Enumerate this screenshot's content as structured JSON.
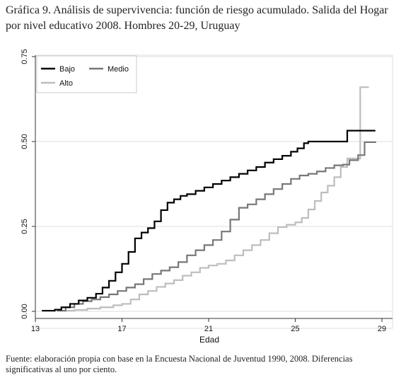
{
  "caption": "Gráfica 9. Análisis de supervivencia: función de riesgo acumulado. Salida del Hogar por nivel educativo 2008. Hombres 20-29, Uruguay",
  "source": "Fuente: elaboración propia con base en la Encuesta Nacional de Juventud 1990, 2008. Diferencias significativas al uno por ciento.",
  "chart_data": {
    "type": "line",
    "step": true,
    "xlabel": "Edad",
    "ylabel": "",
    "xlim": [
      13,
      29
    ],
    "ylim": [
      0,
      0.75
    ],
    "xticks": [
      13,
      17,
      21,
      25,
      29
    ],
    "yticks": [
      0.0,
      0.25,
      0.5,
      0.75
    ],
    "ytick_labels": [
      "0.00",
      "0.25",
      "0.50",
      "0.75"
    ],
    "grid": true,
    "legend_position": "top-left",
    "series": [
      {
        "name": "Bajo",
        "color": "#000000",
        "points": [
          [
            13.3,
            0.002
          ],
          [
            13.5,
            0.002
          ],
          [
            13.9,
            0.005
          ],
          [
            14.2,
            0.012
          ],
          [
            14.6,
            0.022
          ],
          [
            15.0,
            0.032
          ],
          [
            15.4,
            0.04
          ],
          [
            15.8,
            0.052
          ],
          [
            16.1,
            0.07
          ],
          [
            16.4,
            0.09
          ],
          [
            16.7,
            0.115
          ],
          [
            17.0,
            0.14
          ],
          [
            17.3,
            0.175
          ],
          [
            17.6,
            0.215
          ],
          [
            17.9,
            0.232
          ],
          [
            18.2,
            0.245
          ],
          [
            18.5,
            0.265
          ],
          [
            18.8,
            0.298
          ],
          [
            19.1,
            0.32
          ],
          [
            19.4,
            0.33
          ],
          [
            19.7,
            0.34
          ],
          [
            20.0,
            0.345
          ],
          [
            20.4,
            0.355
          ],
          [
            20.8,
            0.365
          ],
          [
            21.2,
            0.375
          ],
          [
            21.6,
            0.385
          ],
          [
            22.0,
            0.395
          ],
          [
            22.4,
            0.405
          ],
          [
            22.8,
            0.415
          ],
          [
            23.2,
            0.425
          ],
          [
            23.6,
            0.438
          ],
          [
            24.0,
            0.448
          ],
          [
            24.4,
            0.458
          ],
          [
            24.8,
            0.47
          ],
          [
            25.1,
            0.48
          ],
          [
            25.4,
            0.495
          ],
          [
            25.6,
            0.5
          ],
          [
            27.4,
            0.5
          ],
          [
            27.4,
            0.532
          ],
          [
            28.7,
            0.532
          ]
        ]
      },
      {
        "name": "Medio",
        "color": "#777777",
        "points": [
          [
            14.0,
            0.002
          ],
          [
            14.4,
            0.012
          ],
          [
            14.8,
            0.022
          ],
          [
            15.2,
            0.03
          ],
          [
            15.6,
            0.035
          ],
          [
            16.0,
            0.042
          ],
          [
            16.4,
            0.05
          ],
          [
            16.8,
            0.06
          ],
          [
            17.2,
            0.07
          ],
          [
            17.6,
            0.08
          ],
          [
            18.0,
            0.095
          ],
          [
            18.4,
            0.11
          ],
          [
            18.8,
            0.12
          ],
          [
            19.2,
            0.13
          ],
          [
            19.6,
            0.145
          ],
          [
            20.0,
            0.165
          ],
          [
            20.4,
            0.18
          ],
          [
            20.8,
            0.195
          ],
          [
            21.2,
            0.21
          ],
          [
            21.6,
            0.235
          ],
          [
            22.0,
            0.27
          ],
          [
            22.4,
            0.305
          ],
          [
            22.8,
            0.315
          ],
          [
            23.2,
            0.33
          ],
          [
            23.6,
            0.345
          ],
          [
            24.0,
            0.36
          ],
          [
            24.4,
            0.375
          ],
          [
            24.8,
            0.39
          ],
          [
            25.2,
            0.4
          ],
          [
            25.6,
            0.405
          ],
          [
            26.0,
            0.412
          ],
          [
            26.4,
            0.422
          ],
          [
            26.8,
            0.43
          ],
          [
            27.2,
            0.432
          ],
          [
            27.5,
            0.445
          ],
          [
            27.9,
            0.46
          ],
          [
            28.2,
            0.498
          ],
          [
            28.7,
            0.5
          ]
        ]
      },
      {
        "name": "Alto",
        "color": "#bdbdbd",
        "points": [
          [
            14.0,
            0.002
          ],
          [
            14.8,
            0.004
          ],
          [
            15.4,
            0.008
          ],
          [
            16.0,
            0.012
          ],
          [
            16.6,
            0.018
          ],
          [
            17.0,
            0.022
          ],
          [
            17.4,
            0.035
          ],
          [
            17.8,
            0.05
          ],
          [
            18.2,
            0.06
          ],
          [
            18.6,
            0.072
          ],
          [
            19.0,
            0.082
          ],
          [
            19.4,
            0.092
          ],
          [
            19.8,
            0.105
          ],
          [
            20.2,
            0.115
          ],
          [
            20.6,
            0.128
          ],
          [
            21.0,
            0.135
          ],
          [
            21.4,
            0.14
          ],
          [
            21.8,
            0.15
          ],
          [
            22.2,
            0.165
          ],
          [
            22.6,
            0.18
          ],
          [
            23.0,
            0.195
          ],
          [
            23.4,
            0.21
          ],
          [
            23.8,
            0.23
          ],
          [
            24.2,
            0.248
          ],
          [
            24.6,
            0.255
          ],
          [
            25.0,
            0.262
          ],
          [
            25.3,
            0.275
          ],
          [
            25.6,
            0.3
          ],
          [
            25.9,
            0.325
          ],
          [
            26.2,
            0.35
          ],
          [
            26.5,
            0.37
          ],
          [
            26.8,
            0.395
          ],
          [
            27.1,
            0.425
          ],
          [
            27.4,
            0.45
          ],
          [
            28.0,
            0.45
          ],
          [
            28.0,
            0.66
          ],
          [
            28.4,
            0.66
          ]
        ]
      }
    ]
  }
}
